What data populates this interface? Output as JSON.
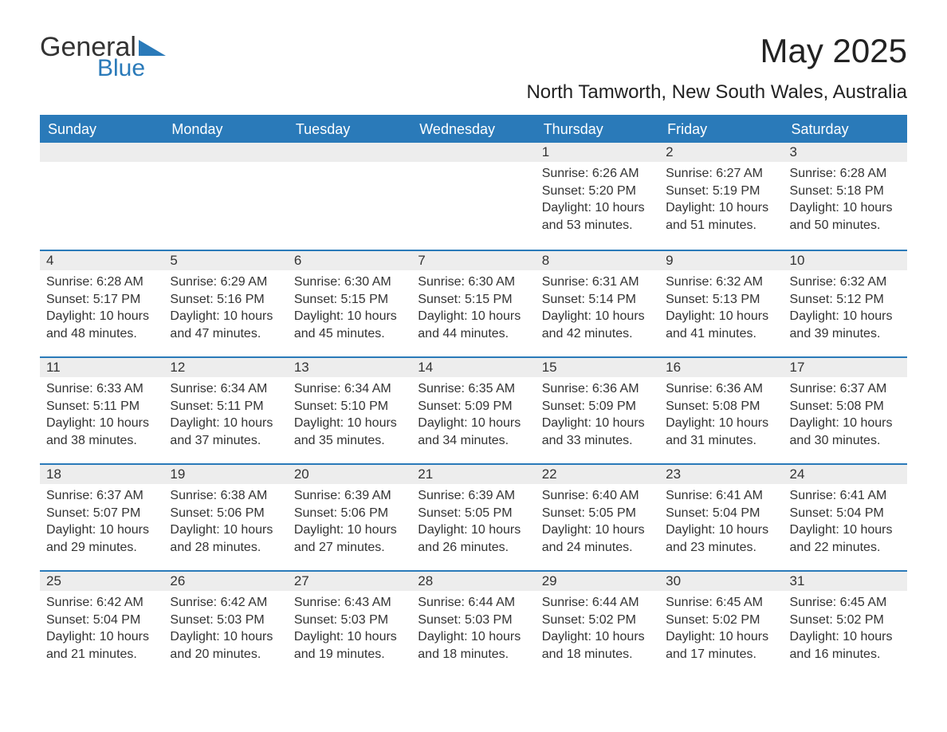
{
  "logo": {
    "word1": "General",
    "word2": "Blue",
    "word1_color": "#333333",
    "word2_color": "#2a7ab9",
    "triangle_color": "#2a7ab9"
  },
  "title": "May 2025",
  "location": "North Tamworth, New South Wales, Australia",
  "colors": {
    "header_bg": "#2a7ab9",
    "header_text": "#ffffff",
    "daynum_bg": "#ededed",
    "text": "#333333",
    "rule": "#2a7ab9",
    "page_bg": "#ffffff"
  },
  "weekdays": [
    "Sunday",
    "Monday",
    "Tuesday",
    "Wednesday",
    "Thursday",
    "Friday",
    "Saturday"
  ],
  "weeks": [
    [
      null,
      null,
      null,
      null,
      {
        "n": "1",
        "rise": "6:26 AM",
        "set": "5:20 PM",
        "day": "10 hours and 53 minutes."
      },
      {
        "n": "2",
        "rise": "6:27 AM",
        "set": "5:19 PM",
        "day": "10 hours and 51 minutes."
      },
      {
        "n": "3",
        "rise": "6:28 AM",
        "set": "5:18 PM",
        "day": "10 hours and 50 minutes."
      }
    ],
    [
      {
        "n": "4",
        "rise": "6:28 AM",
        "set": "5:17 PM",
        "day": "10 hours and 48 minutes."
      },
      {
        "n": "5",
        "rise": "6:29 AM",
        "set": "5:16 PM",
        "day": "10 hours and 47 minutes."
      },
      {
        "n": "6",
        "rise": "6:30 AM",
        "set": "5:15 PM",
        "day": "10 hours and 45 minutes."
      },
      {
        "n": "7",
        "rise": "6:30 AM",
        "set": "5:15 PM",
        "day": "10 hours and 44 minutes."
      },
      {
        "n": "8",
        "rise": "6:31 AM",
        "set": "5:14 PM",
        "day": "10 hours and 42 minutes."
      },
      {
        "n": "9",
        "rise": "6:32 AM",
        "set": "5:13 PM",
        "day": "10 hours and 41 minutes."
      },
      {
        "n": "10",
        "rise": "6:32 AM",
        "set": "5:12 PM",
        "day": "10 hours and 39 minutes."
      }
    ],
    [
      {
        "n": "11",
        "rise": "6:33 AM",
        "set": "5:11 PM",
        "day": "10 hours and 38 minutes."
      },
      {
        "n": "12",
        "rise": "6:34 AM",
        "set": "5:11 PM",
        "day": "10 hours and 37 minutes."
      },
      {
        "n": "13",
        "rise": "6:34 AM",
        "set": "5:10 PM",
        "day": "10 hours and 35 minutes."
      },
      {
        "n": "14",
        "rise": "6:35 AM",
        "set": "5:09 PM",
        "day": "10 hours and 34 minutes."
      },
      {
        "n": "15",
        "rise": "6:36 AM",
        "set": "5:09 PM",
        "day": "10 hours and 33 minutes."
      },
      {
        "n": "16",
        "rise": "6:36 AM",
        "set": "5:08 PM",
        "day": "10 hours and 31 minutes."
      },
      {
        "n": "17",
        "rise": "6:37 AM",
        "set": "5:08 PM",
        "day": "10 hours and 30 minutes."
      }
    ],
    [
      {
        "n": "18",
        "rise": "6:37 AM",
        "set": "5:07 PM",
        "day": "10 hours and 29 minutes."
      },
      {
        "n": "19",
        "rise": "6:38 AM",
        "set": "5:06 PM",
        "day": "10 hours and 28 minutes."
      },
      {
        "n": "20",
        "rise": "6:39 AM",
        "set": "5:06 PM",
        "day": "10 hours and 27 minutes."
      },
      {
        "n": "21",
        "rise": "6:39 AM",
        "set": "5:05 PM",
        "day": "10 hours and 26 minutes."
      },
      {
        "n": "22",
        "rise": "6:40 AM",
        "set": "5:05 PM",
        "day": "10 hours and 24 minutes."
      },
      {
        "n": "23",
        "rise": "6:41 AM",
        "set": "5:04 PM",
        "day": "10 hours and 23 minutes."
      },
      {
        "n": "24",
        "rise": "6:41 AM",
        "set": "5:04 PM",
        "day": "10 hours and 22 minutes."
      }
    ],
    [
      {
        "n": "25",
        "rise": "6:42 AM",
        "set": "5:04 PM",
        "day": "10 hours and 21 minutes."
      },
      {
        "n": "26",
        "rise": "6:42 AM",
        "set": "5:03 PM",
        "day": "10 hours and 20 minutes."
      },
      {
        "n": "27",
        "rise": "6:43 AM",
        "set": "5:03 PM",
        "day": "10 hours and 19 minutes."
      },
      {
        "n": "28",
        "rise": "6:44 AM",
        "set": "5:03 PM",
        "day": "10 hours and 18 minutes."
      },
      {
        "n": "29",
        "rise": "6:44 AM",
        "set": "5:02 PM",
        "day": "10 hours and 18 minutes."
      },
      {
        "n": "30",
        "rise": "6:45 AM",
        "set": "5:02 PM",
        "day": "10 hours and 17 minutes."
      },
      {
        "n": "31",
        "rise": "6:45 AM",
        "set": "5:02 PM",
        "day": "10 hours and 16 minutes."
      }
    ]
  ],
  "labels": {
    "sunrise": "Sunrise:",
    "sunset": "Sunset:",
    "daylight": "Daylight:"
  }
}
